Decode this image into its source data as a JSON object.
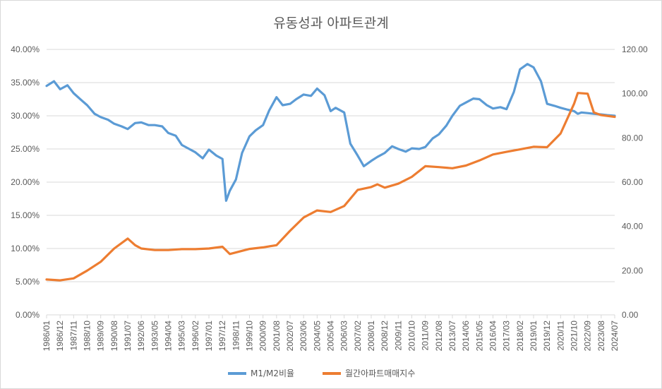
{
  "chart_data": {
    "type": "line",
    "title": "유동성과 아파트관계",
    "colors": {
      "m1m2": "#5b9bd5",
      "apt": "#ed7d31",
      "grid": "#d9d9d9"
    },
    "y_left": {
      "ylim": [
        0,
        40
      ],
      "tick_labels": [
        "0.00%",
        "5.00%",
        "10.00%",
        "15.00%",
        "20.00%",
        "25.00%",
        "30.00%",
        "35.00%",
        "40.00%"
      ]
    },
    "y_right": {
      "ylim": [
        0,
        120
      ],
      "tick_labels": [
        "0.00",
        "20.00",
        "40.00",
        "60.00",
        "80.00",
        "100.00",
        "120.00"
      ]
    },
    "x_tick_labels": [
      "1986/01",
      "1986/12",
      "1987/11",
      "1988/10",
      "1989/09",
      "1990/08",
      "1991/07",
      "1992/06",
      "1993/05",
      "1994/04",
      "1995/03",
      "1996/02",
      "1997/01",
      "1997/12",
      "1998/11",
      "1999/10",
      "2000/09",
      "2001/08",
      "2002/07",
      "2003/06",
      "2004/05",
      "2005/04",
      "2006/03",
      "2007/02",
      "2008/01",
      "2008/12",
      "2009/11",
      "2010/10",
      "2011/09",
      "2012/08",
      "2013/07",
      "2014/06",
      "2015/05",
      "2016/04",
      "2017/03",
      "2018/02",
      "2019/01",
      "2019/12",
      "2020/11",
      "2021/10",
      "2022/09",
      "2023/08",
      "2024/07"
    ],
    "series": [
      {
        "name": "M1/M2비율",
        "axis": "left",
        "x": [
          "1986/01",
          "1986/07",
          "1986/12",
          "1987/06",
          "1987/11",
          "1988/05",
          "1988/10",
          "1989/04",
          "1989/09",
          "1990/03",
          "1990/08",
          "1991/02",
          "1991/07",
          "1992/01",
          "1992/06",
          "1992/12",
          "1993/05",
          "1993/11",
          "1994/04",
          "1994/10",
          "1995/03",
          "1995/09",
          "1996/02",
          "1996/08",
          "1997/01",
          "1997/07",
          "1997/12",
          "1998/03",
          "1998/06",
          "1998/11",
          "1999/04",
          "1999/10",
          "2000/03",
          "2000/09",
          "2001/02",
          "2001/08",
          "2002/01",
          "2002/07",
          "2002/12",
          "2003/06",
          "2003/12",
          "2004/05",
          "2004/11",
          "2005/04",
          "2005/08",
          "2006/03",
          "2006/08",
          "2007/02",
          "2007/07",
          "2008/01",
          "2008/06",
          "2008/12",
          "2009/06",
          "2009/11",
          "2010/05",
          "2010/10",
          "2011/04",
          "2011/09",
          "2012/03",
          "2012/08",
          "2013/02",
          "2013/07",
          "2014/01",
          "2014/06",
          "2014/12",
          "2015/05",
          "2015/11",
          "2016/04",
          "2016/10",
          "2017/03",
          "2017/09",
          "2018/02",
          "2018/08",
          "2019/01",
          "2019/07",
          "2019/12",
          "2020/06",
          "2020/11",
          "2021/05",
          "2021/10",
          "2022/01",
          "2022/04",
          "2022/09",
          "2023/02",
          "2023/08",
          "2024/01",
          "2024/07"
        ],
        "values": [
          34.5,
          35.2,
          34.0,
          34.6,
          33.4,
          32.4,
          31.6,
          30.3,
          29.8,
          29.4,
          28.8,
          28.4,
          28.0,
          28.9,
          29.0,
          28.6,
          28.6,
          28.4,
          27.4,
          27.0,
          25.6,
          25.0,
          24.5,
          23.6,
          24.9,
          24.0,
          23.5,
          17.2,
          18.7,
          20.4,
          24.4,
          26.9,
          27.8,
          28.6,
          30.8,
          32.8,
          31.6,
          31.8,
          32.5,
          33.2,
          33.0,
          34.1,
          33.1,
          30.7,
          31.2,
          30.5,
          25.8,
          24.0,
          22.4,
          23.2,
          23.8,
          24.4,
          25.4,
          25.0,
          24.6,
          25.1,
          25.0,
          25.3,
          26.6,
          27.2,
          28.5,
          30.0,
          31.5,
          32.0,
          32.6,
          32.5,
          31.6,
          31.1,
          31.3,
          31.0,
          33.6,
          37.0,
          37.8,
          37.3,
          35.2,
          31.8,
          31.5,
          31.2,
          30.9,
          30.7,
          30.3,
          30.5,
          30.4,
          30.3,
          30.2,
          30.1,
          30.0
        ]
      },
      {
        "name": "월간아파트매매지수",
        "axis": "right",
        "x": [
          "1986/01",
          "1986/12",
          "1987/11",
          "1988/10",
          "1989/09",
          "1990/08",
          "1991/07",
          "1992/01",
          "1992/06",
          "1993/05",
          "1994/04",
          "1995/03",
          "1996/02",
          "1997/01",
          "1997/12",
          "1998/06",
          "1998/11",
          "1999/10",
          "2000/09",
          "2001/08",
          "2002/07",
          "2003/06",
          "2004/05",
          "2005/04",
          "2006/03",
          "2007/02",
          "2008/01",
          "2008/06",
          "2008/12",
          "2009/11",
          "2010/10",
          "2011/09",
          "2012/08",
          "2013/07",
          "2014/06",
          "2015/05",
          "2016/04",
          "2017/03",
          "2018/02",
          "2019/01",
          "2019/12",
          "2020/11",
          "2021/10",
          "2022/01",
          "2022/09",
          "2023/02",
          "2023/08",
          "2024/07"
        ],
        "values": [
          16.0,
          15.6,
          16.5,
          20.0,
          24.0,
          30.0,
          34.5,
          31.5,
          30.0,
          29.3,
          29.3,
          29.7,
          29.7,
          30.0,
          30.8,
          27.5,
          28.2,
          29.8,
          30.5,
          31.5,
          38.0,
          44.0,
          47.2,
          46.5,
          49.2,
          56.5,
          57.8,
          59.0,
          57.5,
          59.3,
          62.4,
          67.2,
          66.8,
          66.3,
          67.5,
          69.8,
          72.5,
          73.7,
          74.8,
          76.0,
          75.8,
          82.0,
          95.5,
          100.3,
          100.0,
          91.5,
          90.3,
          89.5
        ]
      }
    ]
  }
}
